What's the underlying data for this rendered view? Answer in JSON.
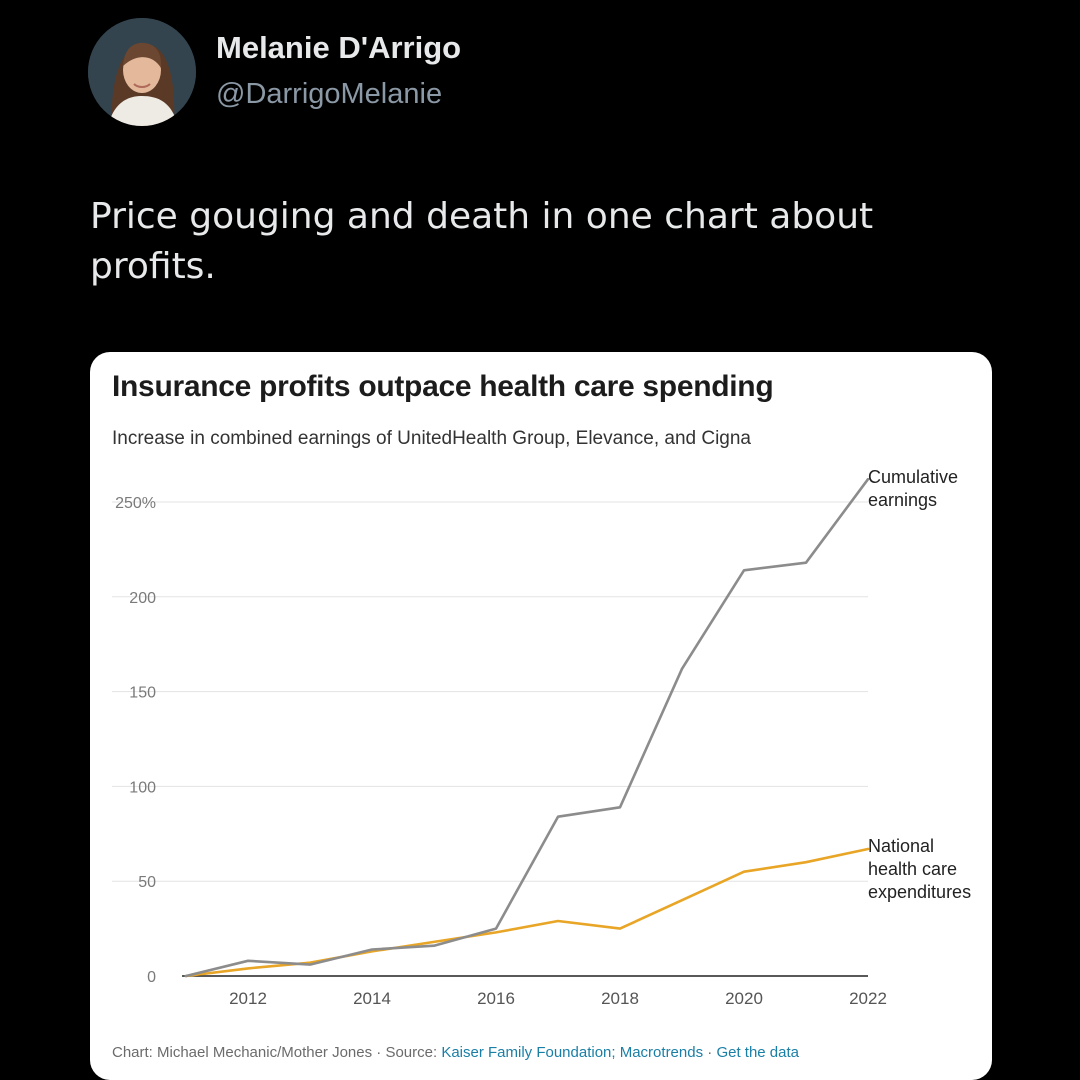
{
  "tweet": {
    "display_name": "Melanie D'Arrigo",
    "handle": "@DarrigoMelanie",
    "text": "Price gouging and death in one chart about profits."
  },
  "chart_data": {
    "type": "line",
    "title": "Insurance profits outpace health care spending",
    "subtitle": "Increase in combined earnings of UnitedHealth Group, Elevance, and Cigna",
    "x": [
      2011,
      2012,
      2013,
      2014,
      2015,
      2016,
      2017,
      2018,
      2019,
      2020,
      2021,
      2022
    ],
    "xticks": [
      2012,
      2014,
      2016,
      2018,
      2020,
      2022
    ],
    "xlim": [
      2011,
      2022
    ],
    "ylim": [
      0,
      250
    ],
    "yticks": [
      0,
      50,
      100,
      150,
      200,
      250
    ],
    "ytick_labels": [
      "0",
      "50",
      "100",
      "150",
      "200",
      "250%"
    ],
    "grid": true,
    "series": [
      {
        "name": "Cumulative earnings",
        "name_lines": [
          "Cumulative",
          "earnings"
        ],
        "color": "#8c8c8c",
        "values": [
          0,
          8,
          6,
          14,
          16,
          25,
          84,
          89,
          162,
          214,
          218,
          262
        ]
      },
      {
        "name": "National health care expenditures",
        "name_lines": [
          "National",
          "health care",
          "expenditures"
        ],
        "color": "#e8a526",
        "values": [
          0,
          4,
          7,
          13,
          18,
          23,
          29,
          25,
          40,
          55,
          60,
          67
        ]
      }
    ],
    "footer": {
      "prefix": "Chart: Michael Mechanic/Mother Jones · Source: ",
      "source_link": "Kaiser Family Foundation; Macrotrends",
      "separator": " · ",
      "data_link": "Get the data"
    }
  }
}
